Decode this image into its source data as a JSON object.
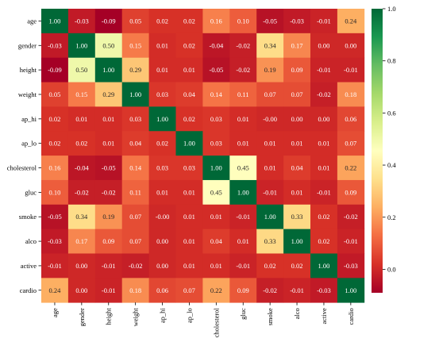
{
  "chart_data": {
    "type": "heatmap",
    "title": "",
    "xlabel": "",
    "ylabel": "",
    "labels": [
      "age",
      "gender",
      "height",
      "weight",
      "ap_hi",
      "ap_lo",
      "cholesterol",
      "gluc",
      "smoke",
      "alco",
      "active",
      "cardio"
    ],
    "values": [
      [
        "1.00",
        "-0.03",
        "-0.09",
        "0.05",
        "0.02",
        "0.02",
        "0.16",
        "0.10",
        "-0.05",
        "-0.03",
        "-0.01",
        "0.24"
      ],
      [
        "-0.03",
        "1.00",
        "0.50",
        "0.15",
        "0.01",
        "0.02",
        "-0.04",
        "-0.02",
        "0.34",
        "0.17",
        "0.00",
        "0.00"
      ],
      [
        "-0.09",
        "0.50",
        "1.00",
        "0.29",
        "0.01",
        "0.01",
        "-0.05",
        "-0.02",
        "0.19",
        "0.09",
        "-0.01",
        "-0.01"
      ],
      [
        "0.05",
        "0.15",
        "0.29",
        "1.00",
        "0.03",
        "0.04",
        "0.14",
        "0.11",
        "0.07",
        "0.07",
        "-0.02",
        "0.18"
      ],
      [
        "0.02",
        "0.01",
        "0.01",
        "0.03",
        "1.00",
        "0.02",
        "0.03",
        "0.01",
        "-0.00",
        "0.00",
        "0.00",
        "0.06"
      ],
      [
        "0.02",
        "0.02",
        "0.01",
        "0.04",
        "0.02",
        "1.00",
        "0.03",
        "0.01",
        "0.01",
        "0.01",
        "0.01",
        "0.07"
      ],
      [
        "0.16",
        "-0.04",
        "-0.05",
        "0.14",
        "0.03",
        "0.03",
        "1.00",
        "0.45",
        "0.01",
        "0.04",
        "0.01",
        "0.22"
      ],
      [
        "0.10",
        "-0.02",
        "-0.02",
        "0.11",
        "0.01",
        "0.01",
        "0.45",
        "1.00",
        "-0.01",
        "0.01",
        "-0.01",
        "0.09"
      ],
      [
        "-0.05",
        "0.34",
        "0.19",
        "0.07",
        "-0.00",
        "0.01",
        "0.01",
        "-0.01",
        "1.00",
        "0.33",
        "0.02",
        "-0.02"
      ],
      [
        "-0.03",
        "0.17",
        "0.09",
        "0.07",
        "0.00",
        "0.01",
        "0.04",
        "0.01",
        "0.33",
        "1.00",
        "0.02",
        "-0.01"
      ],
      [
        "-0.01",
        "0.00",
        "-0.01",
        "-0.02",
        "0.00",
        "0.01",
        "0.01",
        "-0.01",
        "0.02",
        "0.02",
        "1.00",
        "-0.03"
      ],
      [
        "0.24",
        "0.00",
        "-0.01",
        "0.18",
        "0.06",
        "0.07",
        "0.22",
        "0.09",
        "-0.02",
        "-0.01",
        "-0.03",
        "1.00"
      ]
    ],
    "colormap": "RdYlGn",
    "colormap_stops": [
      "#a50026",
      "#d73027",
      "#f46d43",
      "#fdae61",
      "#fee08b",
      "#ffffbf",
      "#d9ef8b",
      "#a6d96a",
      "#66bd63",
      "#1a9850",
      "#006837"
    ],
    "vmin": -0.09,
    "vmax": 1.0,
    "colorbar_ticks": [
      "0.0",
      "0.2",
      "0.4",
      "0.6",
      "0.8",
      "1.0"
    ],
    "grid": false,
    "legend": "colorbar-right"
  }
}
